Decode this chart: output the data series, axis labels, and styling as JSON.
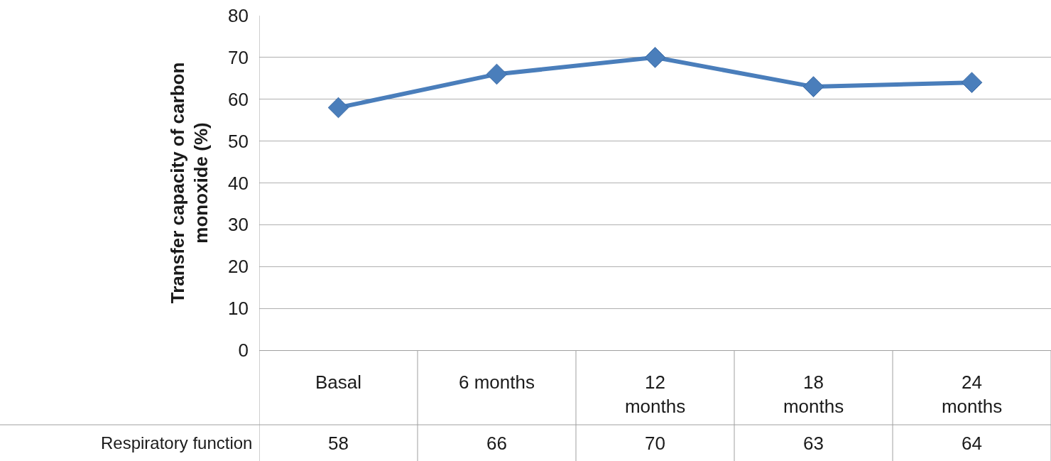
{
  "chart_data": {
    "type": "line",
    "ylabel": "Transfer capacity of carbon monoxide (%)",
    "categories": [
      "Basal",
      "6 months",
      "12 months",
      "18 months",
      "24 months"
    ],
    "series": [
      {
        "name": "Respiratory function",
        "color": "#4a7ebb",
        "values": [
          58,
          66,
          70,
          63,
          64
        ]
      }
    ],
    "ylim": [
      0,
      80
    ],
    "yticks": [
      0,
      10,
      20,
      30,
      40,
      50,
      60,
      70,
      80
    ],
    "grid": "y",
    "marker": "diamond",
    "line_style": "solid",
    "data_labels": true,
    "legend": false
  }
}
